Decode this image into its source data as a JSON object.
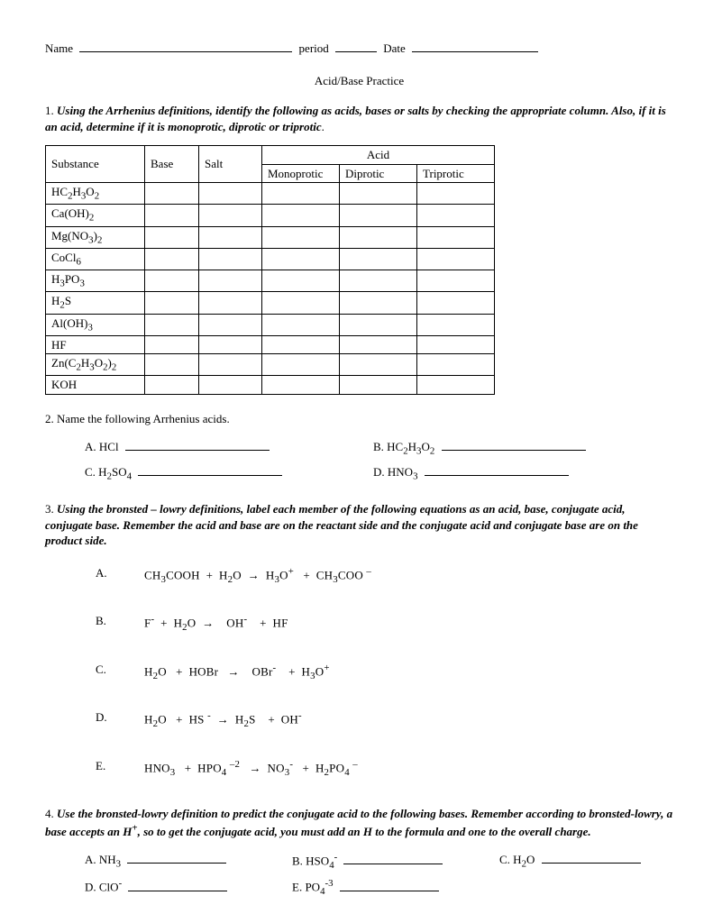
{
  "header": {
    "name_label": "Name",
    "period_label": "period",
    "date_label": "Date"
  },
  "title": "Acid/Base Practice",
  "q1": {
    "number": "1.",
    "text_bi": "Using the Arrhenius definitions, identify the following as acids, bases or salts by checking the appropriate column.  Also, if it is an acid, determine if it is monoprotic, diprotic or triprotic",
    "text_trail": ".",
    "table": {
      "headers": {
        "substance": "Substance",
        "base": "Base",
        "salt": "Salt",
        "acid": "Acid",
        "acid_sub": [
          "Monoprotic",
          "Diprotic",
          "Triprotic"
        ]
      },
      "rows_html": [
        "HC<sub>2</sub>H<sub>3</sub>O<sub>2</sub>",
        "Ca(OH)<sub>2</sub>",
        "Mg(NO<sub>3</sub>)<sub>2</sub>",
        "CoCl<sub>6</sub>",
        "H<sub>3</sub>PO<sub>3</sub>",
        "H<sub>2</sub>S",
        "Al(OH)<sub>3</sub>",
        "HF",
        "Zn(C<sub>2</sub>H<sub>3</sub>O<sub>2</sub>)<sub>2</sub>",
        "KOH"
      ]
    }
  },
  "q2": {
    "number": "2.",
    "text": "Name the following Arrhenius acids.",
    "items_html": [
      {
        "label": "A.",
        "f": "HCl"
      },
      {
        "label": "B.",
        "f": "HC<sub>2</sub>H<sub>3</sub>O<sub>2</sub>"
      },
      {
        "label": "C.",
        "f": "H<sub>2</sub>SO<sub>4</sub>"
      },
      {
        "label": "D.",
        "f": "HNO<sub>3</sub>"
      }
    ]
  },
  "q3": {
    "number": "3.",
    "text_bi": "Using the bronsted – lowry definitions, label each member of the following equations as an acid, base, conjugate acid, conjugate base. Remember the acid and base are on the reactant side and the conjugate acid and conjugate base are on the product side.",
    "eqs_html": [
      {
        "label": "A.",
        "eq": "CH<sub>3</sub>COOH&nbsp;&nbsp;+&nbsp;&nbsp;H<sub>2</sub>O&nbsp;&nbsp;<span class=\"arrow\">→</span>&nbsp;&nbsp;H<sub>3</sub>O<sup>+</sup>&nbsp;&nbsp;&nbsp;+&nbsp;&nbsp;CH<sub>3</sub>COO <sup>–</sup>"
      },
      {
        "label": "B.",
        "eq": "F<sup>-</sup>&nbsp;&nbsp;+&nbsp;&nbsp;H<sub>2</sub>O&nbsp;&nbsp;<span class=\"arrow\">→</span>&nbsp;&nbsp;&nbsp;&nbsp;OH<sup>-</sup>&nbsp;&nbsp;&nbsp;&nbsp;+&nbsp;&nbsp;HF"
      },
      {
        "label": "C.",
        "eq": "H<sub>2</sub>O&nbsp;&nbsp;&nbsp;+&nbsp;&nbsp;HOBr&nbsp;&nbsp;&nbsp;<span class=\"arrow\">→</span>&nbsp;&nbsp;&nbsp;&nbsp;OBr<sup>-</sup>&nbsp;&nbsp;&nbsp;&nbsp;+&nbsp;&nbsp;H<sub>3</sub>O<sup>+</sup>"
      },
      {
        "label": "D.",
        "eq": "H<sub>2</sub>O&nbsp;&nbsp;&nbsp;+&nbsp;&nbsp;HS <sup>-</sup>&nbsp;&nbsp;<span class=\"arrow\">→</span>&nbsp;&nbsp;H<sub>2</sub>S&nbsp;&nbsp;&nbsp;&nbsp;+&nbsp;&nbsp;OH<sup>-</sup>"
      },
      {
        "label": "E.",
        "eq": "HNO<sub>3</sub>&nbsp;&nbsp;&nbsp;+&nbsp;&nbsp;HPO<sub>4</sub> <sup>–2</sup>&nbsp;&nbsp;&nbsp;<span class=\"arrow\">→</span>&nbsp;&nbsp;NO<sub>3</sub><sup>-</sup>&nbsp;&nbsp;&nbsp;+&nbsp;&nbsp;H<sub>2</sub>PO<sub>4</sub> <sup>–</sup>"
      }
    ]
  },
  "q4": {
    "number": "4.",
    "text_bi": "Use the bronsted-lowry definition to predict the conjugate acid to the following bases. Remember according to bronsted-lowry, a base accepts an H<sup>+</sup>, so to get the conjugate acid, you must add an H to the formula and one to the overall charge.",
    "items_html": [
      {
        "label": "A.",
        "f": "NH<sub>3</sub>"
      },
      {
        "label": "B.",
        "f": "HSO<sub>4</sub><sup>-</sup>"
      },
      {
        "label": "C.",
        "f": "H<sub>2</sub>O"
      },
      {
        "label": "D.",
        "f": "ClO<sup>-</sup>"
      },
      {
        "label": "E.",
        "f": "PO<sub>4</sub><sup>-3</sup>"
      }
    ]
  },
  "layout": {
    "blank_widths": {
      "name": 236,
      "period": 46,
      "date": 140,
      "q2": 160,
      "q4": 110
    }
  }
}
